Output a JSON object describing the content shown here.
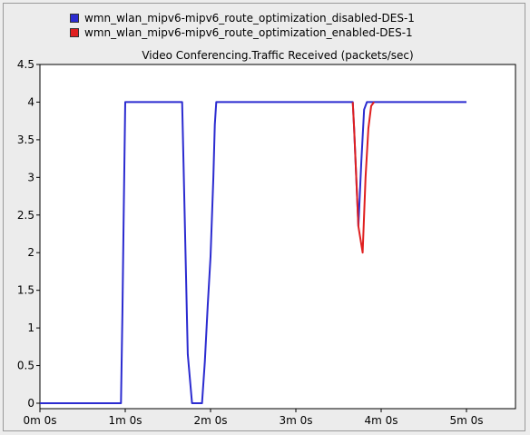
{
  "chart_data": {
    "type": "line",
    "title": "Video Conferencing.Traffic Received (packets/sec)",
    "xlabel": "",
    "ylabel": "",
    "xlim": [
      0,
      330
    ],
    "ylim": [
      0,
      4.5
    ],
    "x_ticks": [
      {
        "value": 0,
        "label": "0m 0s"
      },
      {
        "value": 60,
        "label": "1m 0s"
      },
      {
        "value": 120,
        "label": "2m 0s"
      },
      {
        "value": 180,
        "label": "3m 0s"
      },
      {
        "value": 240,
        "label": "4m 0s"
      },
      {
        "value": 300,
        "label": "5m 0s"
      }
    ],
    "y_ticks": [
      {
        "value": 0,
        "label": "0"
      },
      {
        "value": 0.5,
        "label": "0.5"
      },
      {
        "value": 1,
        "label": "1"
      },
      {
        "value": 1.5,
        "label": "1.5"
      },
      {
        "value": 2,
        "label": "2"
      },
      {
        "value": 2.5,
        "label": "2.5"
      },
      {
        "value": 3,
        "label": "3"
      },
      {
        "value": 3.5,
        "label": "3.5"
      },
      {
        "value": 4,
        "label": "4"
      },
      {
        "value": 4.5,
        "label": "4.5"
      }
    ],
    "grid": false,
    "legend_position": "top",
    "series": [
      {
        "name": "wmn_wlan_mipv6-mipv6_route_optimization_disabled-DES-1",
        "color": "#2b2bd0",
        "x": [
          0,
          57,
          58,
          59,
          60,
          100,
          101,
          104,
          107,
          114,
          116,
          118,
          120,
          122,
          123,
          124,
          220,
          221,
          224,
          226,
          228,
          230,
          232,
          234,
          236,
          240,
          280,
          300
        ],
        "y": [
          0,
          0,
          1.2,
          2.6,
          4,
          4,
          3.2,
          0.65,
          0,
          0,
          0.55,
          1.3,
          1.95,
          3,
          3.7,
          4,
          4,
          3.65,
          2.35,
          3.2,
          3.9,
          4,
          4,
          4,
          4,
          4,
          4,
          4
        ]
      },
      {
        "name": "wmn_wlan_mipv6-mipv6_route_optimization_enabled-DES-1",
        "color": "#e01f1f",
        "x": [
          220,
          221,
          224,
          227,
          229,
          231,
          233,
          235
        ],
        "y": [
          4,
          3.65,
          2.35,
          2.0,
          3.0,
          3.65,
          3.95,
          4
        ]
      }
    ]
  }
}
